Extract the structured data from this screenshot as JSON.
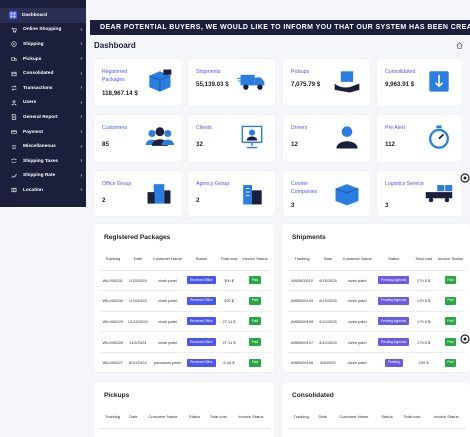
{
  "sidebar": {
    "items": [
      {
        "label": "Dashboard",
        "icon": "dashboard-icon",
        "active": true,
        "chevron": false
      },
      {
        "label": "Online Shopping",
        "icon": "cart-icon",
        "active": false,
        "chevron": true
      },
      {
        "label": "Shipping",
        "icon": "shipping-icon",
        "active": false,
        "chevron": true
      },
      {
        "label": "Pickups",
        "icon": "truck-icon",
        "active": false,
        "chevron": true
      },
      {
        "label": "Consolidated",
        "icon": "box-icon",
        "active": false,
        "chevron": true
      },
      {
        "label": "Transactions",
        "icon": "transactions-icon",
        "active": false,
        "chevron": true
      },
      {
        "label": "Users",
        "icon": "users-icon",
        "active": false,
        "chevron": true
      },
      {
        "label": "General Report",
        "icon": "report-icon",
        "active": false,
        "chevron": true
      },
      {
        "label": "Payment",
        "icon": "payment-icon",
        "active": false,
        "chevron": true
      },
      {
        "label": "Miscellaneous",
        "icon": "misc-icon",
        "active": false,
        "chevron": true
      },
      {
        "label": "Shipping Taxes",
        "icon": "taxes-icon",
        "active": false,
        "chevron": true
      },
      {
        "label": "Shipping Rate",
        "icon": "rate-icon",
        "active": false,
        "chevron": true
      },
      {
        "label": "Location",
        "icon": "location-icon",
        "active": false,
        "chevron": true
      }
    ]
  },
  "marquee": "DEAR POTENTIAL BUYERS, WE WOULD LIKE TO INFORM YOU THAT OUR SYSTEM HAS BEEN CREATED",
  "page_title": "Dashboard",
  "stats": [
    {
      "title": "Registered Packages",
      "value": "118,967.14 $",
      "icon": "packages-icon"
    },
    {
      "title": "Shipments",
      "value": "55,139.03 $",
      "icon": "shipments-icon"
    },
    {
      "title": "Pickups",
      "value": "7,075.79 $",
      "icon": "pickups-icon"
    },
    {
      "title": "Consolidated",
      "value": "9,963.91 $",
      "icon": "consolidated-icon"
    },
    {
      "title": "Customers",
      "value": "85",
      "icon": "customers-icon"
    },
    {
      "title": "Clients",
      "value": "32",
      "icon": "clients-icon"
    },
    {
      "title": "Drivers",
      "value": "12",
      "icon": "drivers-icon"
    },
    {
      "title": "Pre Alert",
      "value": "112",
      "icon": "pre-alert-icon"
    },
    {
      "title": "Office Group",
      "value": "2",
      "icon": "office-icon"
    },
    {
      "title": "Agency Group",
      "value": "2",
      "icon": "agency-icon"
    },
    {
      "title": "Courier Companies",
      "value": "3",
      "icon": "courier-icon"
    },
    {
      "title": "Logistics Service",
      "value": "3",
      "icon": "logistics-icon"
    }
  ],
  "registered_packages": {
    "title": "Registered Packages",
    "headers": [
      "Tracking",
      "Date",
      "Customer Name",
      "Status",
      "Total cost",
      "Invoice Status"
    ],
    "rows": [
      {
        "tracking": "WIL000031",
        "date": "1/15/2025",
        "customer": "vivek patel",
        "status": "Received Office",
        "total": "300 $",
        "invoice": "Paid"
      },
      {
        "tracking": "WIL000030",
        "date": "1/15/2025",
        "customer": "vivek patel",
        "status": "Received Office",
        "total": "300 $",
        "invoice": "Paid"
      },
      {
        "tracking": "WIL000029",
        "date": "12/13/2024",
        "customer": "vivek patel",
        "status": "Received Office",
        "total": "27.11 $",
        "invoice": "Paid"
      },
      {
        "tracking": "WIL000028",
        "date": "11/9/2024",
        "customer": "vivek patel",
        "status": "Received Office",
        "total": "27.11 $",
        "invoice": "Paid"
      },
      {
        "tracking": "WIL000027",
        "date": "8/20/2024",
        "customer": "parootam patel",
        "status": "Received Office",
        "total": "5.44 $",
        "invoice": "Paid"
      }
    ]
  },
  "shipments": {
    "title": "Shipments",
    "headers": [
      "Tracking",
      "Date",
      "Customer Name",
      "Status",
      "Total cost",
      "Invoice Status"
    ],
    "rows": [
      {
        "tracking": "AWB000110",
        "date": "4/15/2025",
        "customer": "vivek patel",
        "status": "Pending Approval",
        "total": "179.5 $",
        "invoice": "Paid"
      },
      {
        "tracking": "AWB000109",
        "date": "4/15/2025",
        "customer": "vivek patel",
        "status": "Pending Approval",
        "total": "179.5 $",
        "invoice": "Paid"
      },
      {
        "tracking": "AWB000108",
        "date": "4/10/2025",
        "customer": "vivek patel",
        "status": "Pending Approval",
        "total": "179.5 $",
        "invoice": "Paid"
      },
      {
        "tracking": "AWB000107",
        "date": "4/10/2025",
        "customer": "vivek patel",
        "status": "Pending Approval",
        "total": "179.5 $",
        "invoice": "Paid"
      },
      {
        "tracking": "AWB000106",
        "date": "4/8/2025",
        "customer": "vivek patel",
        "status": "Pending",
        "total": "239 $",
        "invoice": "Paid"
      }
    ]
  },
  "pickups": {
    "title": "Pickups",
    "headers": [
      "Tracking",
      "Date",
      "Customer Name",
      "Status",
      "Total cost",
      "Invoice Status"
    ]
  },
  "consolidated": {
    "title": "Consolidated",
    "headers": [
      "Tracking",
      "Date",
      "Customer Name",
      "Status",
      "Total cost",
      "Invoice Status"
    ]
  },
  "colors": {
    "accent": "#4b57f5",
    "sidebar": "#1b1f3b",
    "paid": "#28a745",
    "pending": "#6a5be5"
  }
}
